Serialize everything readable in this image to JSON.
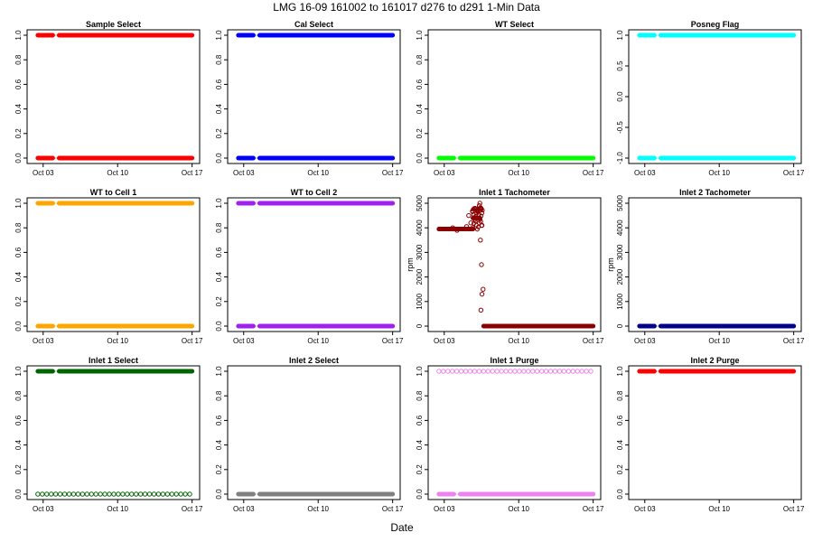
{
  "figure_title": "LMG   16-09    161002 to 161017    d276 to d291   1-Min Data",
  "xlabel": "Date",
  "x_ticks": [
    {
      "label": "Oct 03",
      "day": 277
    },
    {
      "label": "Oct 10",
      "day": 284
    },
    {
      "label": "Oct 17",
      "day": 291
    }
  ],
  "chart_data": [
    {
      "type": "scatter",
      "title": "Sample Select",
      "ylabel": "",
      "xlim": [
        276,
        291.2
      ],
      "ylim": [
        0,
        1
      ],
      "yticks": [
        "0.0",
        "0.2",
        "0.4",
        "0.6",
        "0.8",
        "1.0"
      ],
      "ytick_values": [
        0,
        0.2,
        0.4,
        0.6,
        0.8,
        1.0
      ],
      "color": "#ff0000",
      "gap": [
        277.9,
        278.5
      ],
      "data_summary": [
        {
          "value": 1,
          "from": 276.5,
          "to": 291
        },
        {
          "value": 0,
          "from": 276.5,
          "to": 291
        }
      ]
    },
    {
      "type": "scatter",
      "title": "Cal Select",
      "ylabel": "",
      "xlim": [
        276,
        291.2
      ],
      "ylim": [
        0,
        1
      ],
      "yticks": [
        "0.0",
        "0.2",
        "0.4",
        "0.6",
        "0.8",
        "1.0"
      ],
      "ytick_values": [
        0,
        0.2,
        0.4,
        0.6,
        0.8,
        1.0
      ],
      "color": "#0000ff",
      "gap": [
        277.9,
        278.5
      ],
      "data_summary": [
        {
          "value": 1,
          "from": 276.5,
          "to": 291
        },
        {
          "value": 0,
          "from": 276.5,
          "to": 291
        }
      ]
    },
    {
      "type": "scatter",
      "title": "WT Select",
      "ylabel": "",
      "xlim": [
        276,
        291.2
      ],
      "ylim": [
        0,
        1
      ],
      "yticks": [
        "0.0",
        "0.2",
        "0.4",
        "0.6",
        "0.8",
        "1.0"
      ],
      "ytick_values": [
        0,
        0.2,
        0.4,
        0.6,
        0.8,
        1.0
      ],
      "color": "#00ff00",
      "gap": [
        277.9,
        278.5
      ],
      "data_summary": [
        {
          "value": 0,
          "from": 276.5,
          "to": 291
        }
      ]
    },
    {
      "type": "scatter",
      "title": "Posneg Flag",
      "ylabel": "",
      "xlim": [
        276,
        291.2
      ],
      "ylim": [
        -1,
        1
      ],
      "yticks": [
        "-1.0",
        "-0.5",
        "0.0",
        "0.5",
        "1.0"
      ],
      "ytick_values": [
        -1,
        -0.5,
        0,
        0.5,
        1.0
      ],
      "color": "#00ffff",
      "gap": [
        277.9,
        278.5
      ],
      "data_summary": [
        {
          "value": 1,
          "from": 276.5,
          "to": 291
        },
        {
          "value": -1,
          "from": 276.5,
          "to": 291
        }
      ]
    },
    {
      "type": "scatter",
      "title": "WT to Cell 1",
      "ylabel": "",
      "xlim": [
        276,
        291.2
      ],
      "ylim": [
        0,
        1
      ],
      "yticks": [
        "0.0",
        "0.2",
        "0.4",
        "0.6",
        "0.8",
        "1.0"
      ],
      "ytick_values": [
        0,
        0.2,
        0.4,
        0.6,
        0.8,
        1.0
      ],
      "color": "#ffa500",
      "gap": [
        277.9,
        278.5
      ],
      "data_summary": [
        {
          "value": 1,
          "from": 276.5,
          "to": 291
        },
        {
          "value": 0,
          "from": 276.5,
          "to": 291
        }
      ]
    },
    {
      "type": "scatter",
      "title": "WT to Cell 2",
      "ylabel": "",
      "xlim": [
        276,
        291.2
      ],
      "ylim": [
        0,
        1
      ],
      "yticks": [
        "0.0",
        "0.2",
        "0.4",
        "0.6",
        "0.8",
        "1.0"
      ],
      "ytick_values": [
        0,
        0.2,
        0.4,
        0.6,
        0.8,
        1.0
      ],
      "color": "#a020f0",
      "gap": [
        277.9,
        278.5
      ],
      "data_summary": [
        {
          "value": 1,
          "from": 276.5,
          "to": 291
        },
        {
          "value": 0,
          "from": 276.5,
          "to": 291
        }
      ]
    },
    {
      "type": "scatter",
      "title": "Inlet 1 Tachometer",
      "ylabel": "rpm",
      "xlim": [
        276,
        291.2
      ],
      "ylim": [
        0,
        5000
      ],
      "yticks": [
        "0",
        "1000",
        "2000",
        "3000",
        "4000",
        "5000"
      ],
      "ytick_values": [
        0,
        1000,
        2000,
        3000,
        4000,
        5000
      ],
      "color": "#8b0000",
      "data_summary": [
        {
          "value": 3950,
          "from": 276.5,
          "to": 279.7
        },
        {
          "value": 4400,
          "from": 279.7,
          "to": 280.3
        },
        {
          "value": 0,
          "from": 280.7,
          "to": 291
        }
      ],
      "outliers": [
        {
          "x": 277.8,
          "y": 4000
        },
        {
          "x": 278.2,
          "y": 3900
        },
        {
          "x": 279.1,
          "y": 4050
        },
        {
          "x": 279.3,
          "y": 4500
        },
        {
          "x": 279.5,
          "y": 4200
        },
        {
          "x": 280.1,
          "y": 4700
        },
        {
          "x": 280.3,
          "y": 4900
        },
        {
          "x": 280.35,
          "y": 5100
        },
        {
          "x": 280.45,
          "y": 4800
        },
        {
          "x": 280.55,
          "y": 4100
        },
        {
          "x": 280.4,
          "y": 3500
        },
        {
          "x": 280.5,
          "y": 2500
        },
        {
          "x": 280.65,
          "y": 1500
        },
        {
          "x": 280.55,
          "y": 1300
        },
        {
          "x": 280.45,
          "y": 650
        }
      ]
    },
    {
      "type": "scatter",
      "title": "Inlet 2 Tachometer",
      "ylabel": "rpm",
      "xlim": [
        276,
        291.2
      ],
      "ylim": [
        0,
        5000
      ],
      "yticks": [
        "0",
        "1000",
        "2000",
        "3000",
        "4000",
        "5000"
      ],
      "ytick_values": [
        0,
        1000,
        2000,
        3000,
        4000,
        5000
      ],
      "color": "#00008b",
      "gap": [
        277.9,
        278.5
      ],
      "data_summary": [
        {
          "value": 0,
          "from": 276.5,
          "to": 291
        }
      ]
    },
    {
      "type": "scatter",
      "title": "Inlet 1 Select",
      "ylabel": "",
      "xlim": [
        276,
        291.2
      ],
      "ylim": [
        0,
        1
      ],
      "yticks": [
        "0.0",
        "0.2",
        "0.4",
        "0.6",
        "0.8",
        "1.0"
      ],
      "ytick_values": [
        0,
        0.2,
        0.4,
        0.6,
        0.8,
        1.0
      ],
      "color": "#006400",
      "gap": [
        277.9,
        278.5
      ],
      "data_summary": [
        {
          "value": 1,
          "from": 276.5,
          "to": 291
        }
      ],
      "sparse_value": 0
    },
    {
      "type": "scatter",
      "title": "Inlet 2 Select",
      "ylabel": "",
      "xlim": [
        276,
        291.2
      ],
      "ylim": [
        0,
        1
      ],
      "yticks": [
        "0.0",
        "0.2",
        "0.4",
        "0.6",
        "0.8",
        "1.0"
      ],
      "ytick_values": [
        0,
        0.2,
        0.4,
        0.6,
        0.8,
        1.0
      ],
      "color": "#808080",
      "gap": [
        277.9,
        278.5
      ],
      "data_summary": [
        {
          "value": 0,
          "from": 276.5,
          "to": 291
        }
      ]
    },
    {
      "type": "scatter",
      "title": "Inlet 1 Purge",
      "ylabel": "",
      "xlim": [
        276,
        291.2
      ],
      "ylim": [
        0,
        1
      ],
      "yticks": [
        "0.0",
        "0.2",
        "0.4",
        "0.6",
        "0.8",
        "1.0"
      ],
      "ytick_values": [
        0,
        0.2,
        0.4,
        0.6,
        0.8,
        1.0
      ],
      "color": "#ee82ee",
      "gap": [
        277.9,
        278.5
      ],
      "data_summary": [
        {
          "value": 0,
          "from": 276.5,
          "to": 291
        }
      ],
      "sparse_value": 1
    },
    {
      "type": "scatter",
      "title": "Inlet 2 Purge",
      "ylabel": "",
      "xlim": [
        276,
        291.2
      ],
      "ylim": [
        0,
        1
      ],
      "yticks": [
        "0.0",
        "0.2",
        "0.4",
        "0.6",
        "0.8",
        "1.0"
      ],
      "ytick_values": [
        0,
        0.2,
        0.4,
        0.6,
        0.8,
        1.0
      ],
      "color": "#ff0000",
      "gap": [
        277.9,
        278.5
      ],
      "data_summary": [
        {
          "value": 1,
          "from": 276.5,
          "to": 291
        }
      ]
    }
  ]
}
